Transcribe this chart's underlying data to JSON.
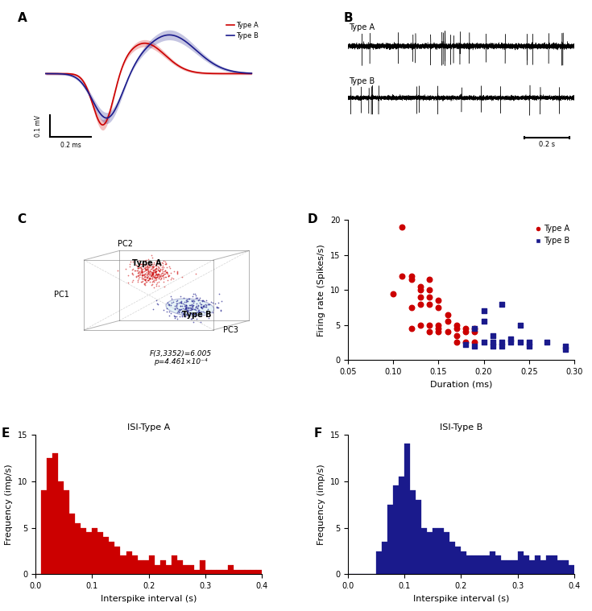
{
  "type_a_color": "#CC0000",
  "type_b_color": "#1a1a8c",
  "scatter_D_typeA": {
    "duration": [
      0.1,
      0.11,
      0.11,
      0.12,
      0.12,
      0.12,
      0.12,
      0.13,
      0.13,
      0.13,
      0.13,
      0.13,
      0.14,
      0.14,
      0.14,
      0.14,
      0.14,
      0.14,
      0.15,
      0.15,
      0.15,
      0.15,
      0.15,
      0.16,
      0.16,
      0.16,
      0.17,
      0.17,
      0.17,
      0.17,
      0.18,
      0.18,
      0.18,
      0.19,
      0.19,
      0.19
    ],
    "firing_rate": [
      9.5,
      19.0,
      12.0,
      11.5,
      12.0,
      7.5,
      4.5,
      10.5,
      10.0,
      9.0,
      8.0,
      5.0,
      11.5,
      10.0,
      9.0,
      8.0,
      5.0,
      4.0,
      8.5,
      7.5,
      5.0,
      4.5,
      4.0,
      6.5,
      5.5,
      4.0,
      5.0,
      4.5,
      3.5,
      2.5,
      4.5,
      4.0,
      2.5,
      4.5,
      4.0,
      2.5
    ]
  },
  "scatter_D_typeB": {
    "duration": [
      0.18,
      0.19,
      0.19,
      0.2,
      0.2,
      0.2,
      0.21,
      0.21,
      0.21,
      0.22,
      0.22,
      0.22,
      0.23,
      0.23,
      0.24,
      0.24,
      0.25,
      0.25,
      0.27,
      0.29,
      0.29
    ],
    "firing_rate": [
      2.2,
      2.0,
      4.5,
      2.5,
      7.0,
      5.5,
      2.0,
      2.5,
      3.5,
      2.5,
      2.0,
      8.0,
      3.0,
      2.5,
      2.5,
      5.0,
      2.5,
      2.0,
      2.5,
      1.5,
      2.0
    ]
  },
  "isi_A_bins": [
    0.0,
    0.01,
    0.02,
    0.03,
    0.04,
    0.05,
    0.06,
    0.07,
    0.08,
    0.09,
    0.1,
    0.11,
    0.12,
    0.13,
    0.14,
    0.15,
    0.16,
    0.17,
    0.18,
    0.19,
    0.2,
    0.21,
    0.22,
    0.23,
    0.24,
    0.25,
    0.26,
    0.27,
    0.28,
    0.29,
    0.3,
    0.31,
    0.32,
    0.33,
    0.34,
    0.35,
    0.36,
    0.37,
    0.38,
    0.39,
    0.4
  ],
  "isi_A_heights": [
    0,
    9.0,
    12.5,
    13.0,
    10.0,
    9.0,
    6.5,
    5.5,
    5.0,
    4.5,
    5.0,
    4.5,
    4.0,
    3.5,
    3.0,
    2.0,
    2.5,
    2.0,
    1.5,
    1.5,
    2.0,
    1.0,
    1.5,
    1.0,
    2.0,
    1.5,
    1.0,
    1.0,
    0.5,
    1.5,
    0.5,
    0.5,
    0.5,
    0.5,
    1.0,
    0.5,
    0.5,
    0.5,
    0.5,
    0.5
  ],
  "isi_B_bins": [
    0.0,
    0.01,
    0.02,
    0.03,
    0.04,
    0.05,
    0.06,
    0.07,
    0.08,
    0.09,
    0.1,
    0.11,
    0.12,
    0.13,
    0.14,
    0.15,
    0.16,
    0.17,
    0.18,
    0.19,
    0.2,
    0.21,
    0.22,
    0.23,
    0.24,
    0.25,
    0.26,
    0.27,
    0.28,
    0.29,
    0.3,
    0.31,
    0.32,
    0.33,
    0.34,
    0.35,
    0.36,
    0.37,
    0.38,
    0.39,
    0.4
  ],
  "isi_B_heights": [
    0,
    0,
    0,
    0,
    0,
    2.5,
    3.5,
    7.5,
    9.5,
    10.5,
    14.0,
    9.0,
    8.0,
    5.0,
    4.5,
    5.0,
    5.0,
    4.5,
    3.5,
    3.0,
    2.5,
    2.0,
    2.0,
    2.0,
    2.0,
    2.5,
    2.0,
    1.5,
    1.5,
    1.5,
    2.5,
    2.0,
    1.5,
    2.0,
    1.5,
    2.0,
    2.0,
    1.5,
    1.5,
    1.0
  ],
  "scalebar_mV": "0.1 mV",
  "scalebar_ms": "0.2 ms",
  "scalebar_s": "0.2 s"
}
